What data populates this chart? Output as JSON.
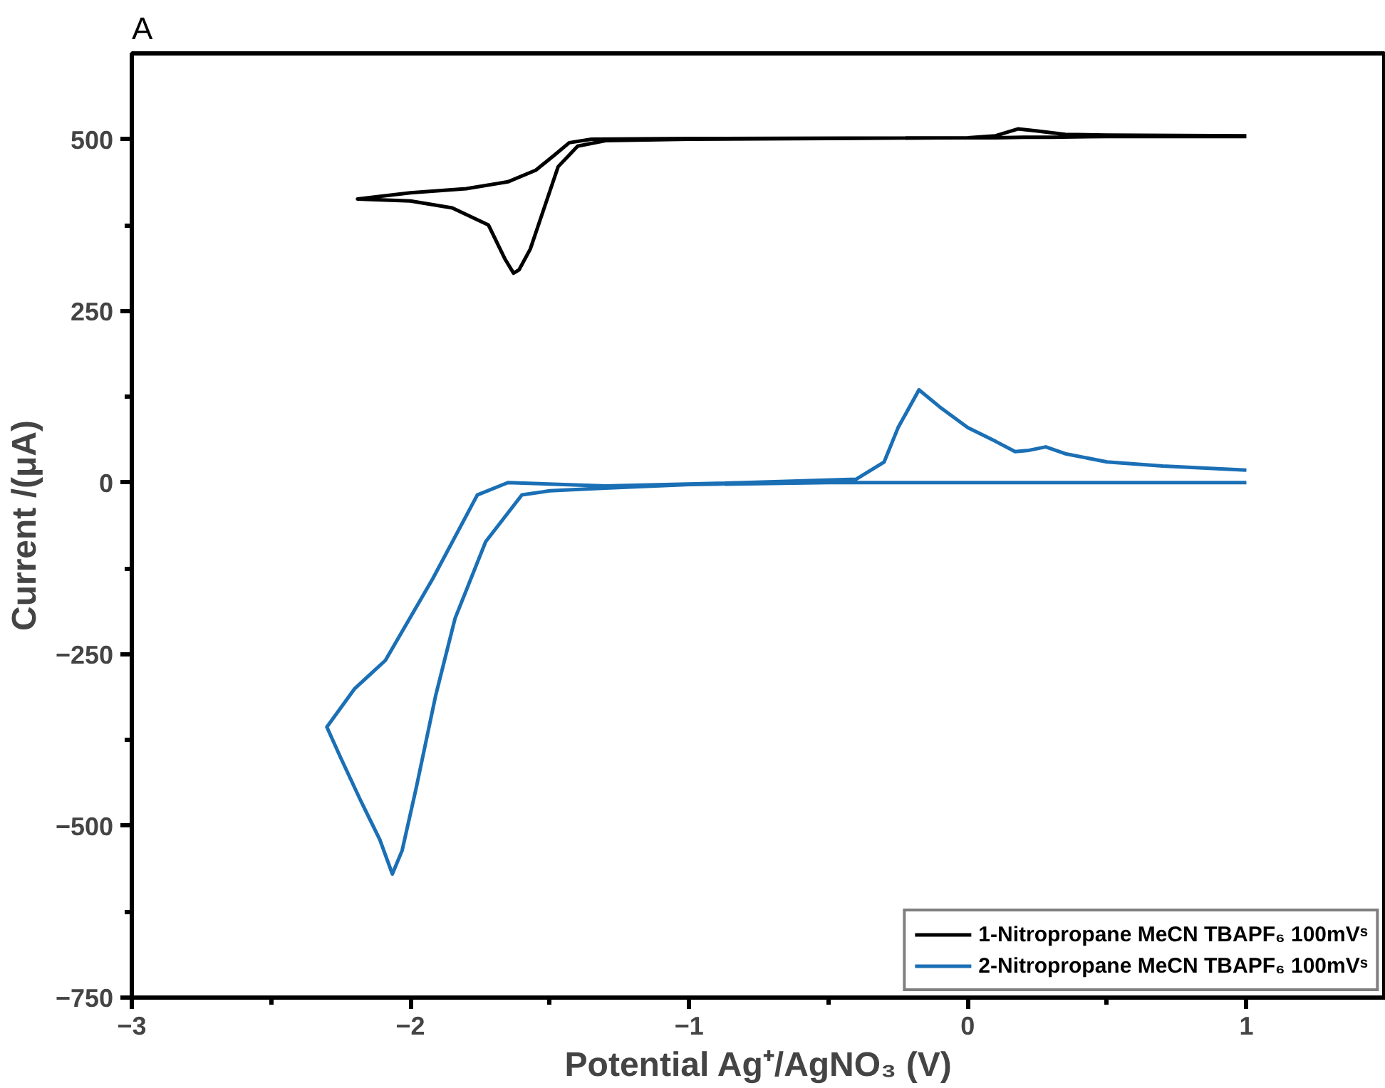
{
  "chart_data": {
    "type": "line",
    "xlabel": "Potential Ag⁺/AgNO₃ (V)",
    "ylabel": "Current /(μA)",
    "annotations": [
      "A"
    ],
    "xlim": [
      -3,
      1.5
    ],
    "xticks": [
      -3,
      {
        "value": -2.5,
        "label": null
      },
      -2,
      {
        "value": -1.5,
        "label": null
      },
      -1,
      {
        "value": -0.5,
        "label": null
      },
      0,
      {
        "value": 0.5,
        "label": null
      },
      1
    ],
    "ylim": [
      -750,
      625
    ],
    "yticks": [
      -750,
      {
        "value": -625,
        "label": null
      },
      -500,
      {
        "value": -375,
        "label": null
      },
      -250,
      {
        "value": -125,
        "label": null
      },
      0,
      {
        "value": 125,
        "label": null
      },
      250,
      {
        "value": 375,
        "label": null
      },
      500
    ],
    "grid": false,
    "legend": "bottom right",
    "marker": "none",
    "line_style": "solid",
    "series": [
      {
        "name": "1-Nitropropane MeCN TBAPF₆ 100mVˢ",
        "color": "#000000",
        "x": [
          1.0,
          0.5,
          0.3,
          0.2,
          0.1,
          0,
          -0.5,
          -1.0,
          -1.3,
          -1.4,
          -1.47,
          -1.52,
          -1.57,
          -1.61,
          -1.63,
          -1.66,
          -1.72,
          -1.85,
          -2.0,
          -2.19,
          -2.0,
          -1.8,
          -1.65,
          -1.55,
          -1.48,
          -1.43,
          -1.35,
          -1.0,
          0,
          0.1,
          0.18,
          0.25,
          0.35,
          0.5,
          1.0
        ],
        "values": [
          504,
          504,
          503,
          503,
          502,
          502,
          501,
          500,
          498,
          490,
          460,
          400,
          340,
          310,
          305,
          325,
          375,
          400,
          410,
          413,
          422,
          428,
          438,
          455,
          478,
          495,
          500,
          501,
          502,
          505,
          515,
          512,
          507,
          506,
          505
        ]
      },
      {
        "name": "2-Nitropropane MeCN TBAPF₆ 100mVˢ",
        "color": "#1a6fb5",
        "x": [
          1.0,
          0.5,
          0,
          -0.5,
          -1.0,
          -1.3,
          -1.5,
          -1.6,
          -1.73,
          -1.84,
          -1.91,
          -1.98,
          -2.03,
          -2.065,
          -2.11,
          -2.18,
          -2.25,
          -2.3,
          -2.2,
          -2.09,
          -1.92,
          -1.76,
          -1.65,
          -1.3,
          -0.8,
          -0.4,
          -0.3,
          -0.25,
          -0.175,
          -0.1,
          0,
          0.1,
          0.17,
          0.22,
          0.28,
          0.35,
          0.5,
          0.7,
          1.0
        ],
        "values": [
          0,
          0,
          0,
          0,
          -3,
          -8,
          -12,
          -18,
          -86,
          -198,
          -311,
          -446,
          -536,
          -570,
          -520,
          -462,
          -401,
          -356,
          -300,
          -259,
          -140,
          -18,
          0,
          -5,
          0,
          5,
          30,
          80,
          135,
          110,
          80,
          60,
          45,
          47,
          52,
          42,
          30,
          24,
          18
        ]
      }
    ]
  }
}
